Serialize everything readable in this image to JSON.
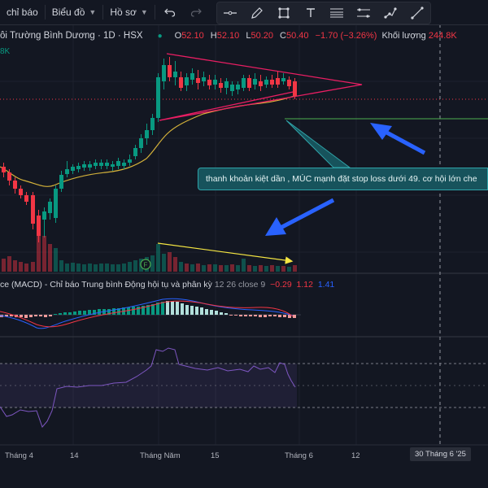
{
  "toolbar": {
    "indicators_label": "chỉ báo",
    "chart_type_label": "Biểu đồ",
    "profile_label": "Hồ sơ",
    "drawing_tools": [
      "horizontal-line-icon",
      "pencil-icon",
      "rectangle-icon",
      "text-icon",
      "fib-icon",
      "parallel-channel-icon",
      "path-icon",
      "trend-line-icon"
    ]
  },
  "legend": {
    "symbol": "ôi Trường Bình Dương · 1D · HSX",
    "open_key": "O",
    "open": "52.10",
    "high_key": "H",
    "high": "52.10",
    "low_key": "L",
    "low": "50.20",
    "close_key": "C",
    "close": "50.40",
    "change": "−1.70 (−3.26%)",
    "volume_label": "Khối lượng",
    "volume": "244.8K",
    "sub_value": "8K"
  },
  "macd_legend": {
    "name": "ce (MACD) - Chỉ báo Trung bình Động hội tụ và phân kỳ",
    "params": "12 26 close 9",
    "v1": "−0.29",
    "v2": "1.12",
    "v3": "1.41"
  },
  "annotation": {
    "text": "thanh khoản kiệt dần , MÚC mạnh đặt stop loss dưới 49. cơ hội lớn che"
  },
  "badge_label": "F",
  "xaxis": {
    "labels": [
      "Tháng 4",
      "14",
      "Tháng Năm",
      "15",
      "Tháng 6",
      "12"
    ],
    "crosshair_label": "30 Tháng 6 '25"
  },
  "colors": {
    "background": "#131722",
    "up": "#089981",
    "down": "#f23645",
    "ma": "#d4b23a",
    "triangle": "#e91e63",
    "support": "#4caf50",
    "arrow": "#2962ff",
    "callout": "#17535c",
    "volume_trend": "#f5e642",
    "rsi": "#7e57c2"
  }
}
